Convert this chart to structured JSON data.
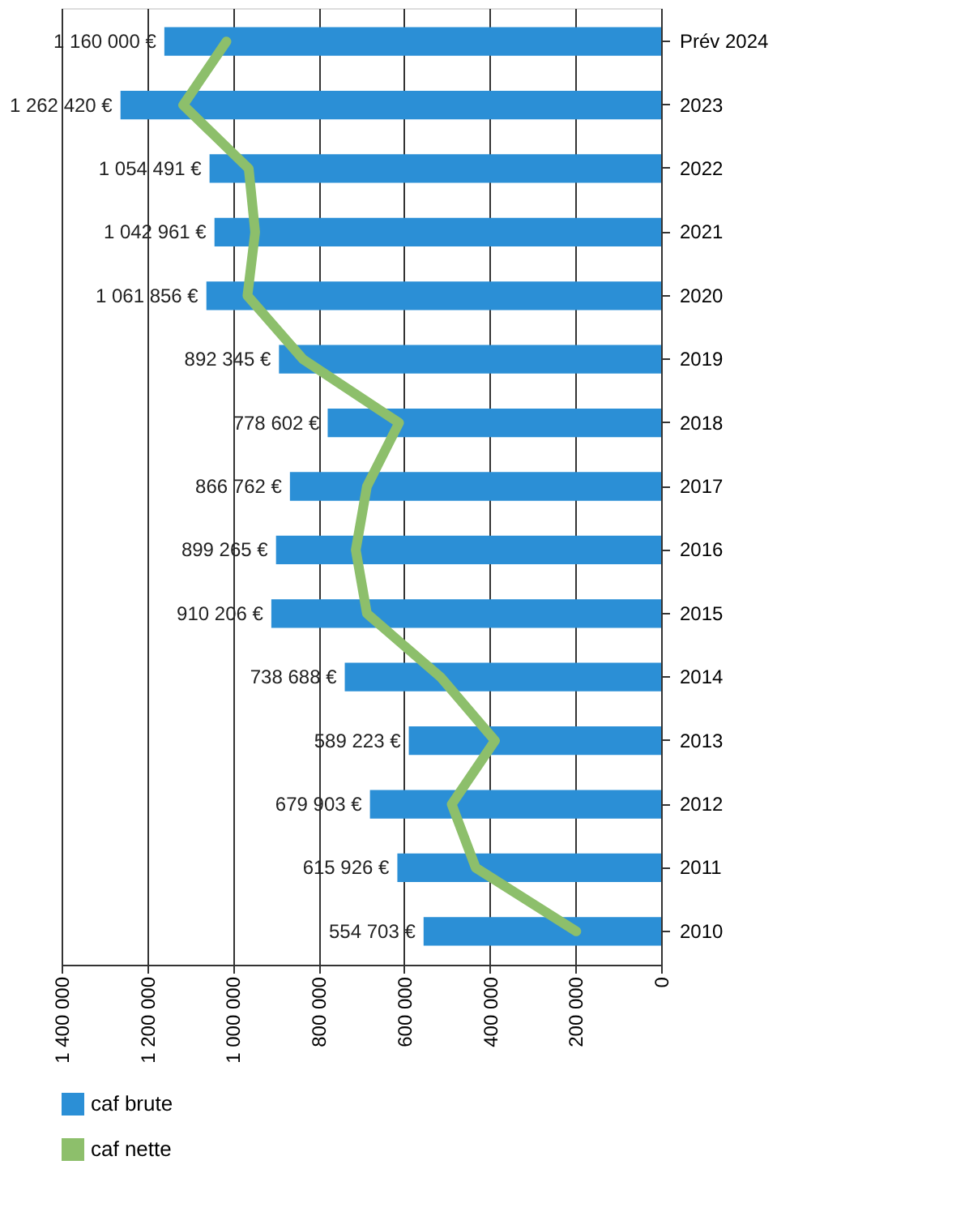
{
  "chart_data": {
    "type": "bar",
    "orientation": "horizontal",
    "categories": [
      "Prév 2024",
      "2023",
      "2022",
      "2021",
      "2020",
      "2019",
      "2018",
      "2017",
      "2016",
      "2015",
      "2014",
      "2013",
      "2012",
      "2011",
      "2010"
    ],
    "series": [
      {
        "name": "caf brute",
        "color": "#2b8fd6",
        "values": [
          1160000,
          1262420,
          1054491,
          1042961,
          1061856,
          892345,
          778602,
          866762,
          899265,
          910206,
          738688,
          589223,
          679903,
          615926,
          554703
        ],
        "value_labels": [
          "1 160 000 €",
          "1 262 420 €",
          "1 054 491 €",
          "1 042 961 €",
          "1 061 856 €",
          "892 345 €",
          "778 602 €",
          "866 762 €",
          "899 265 €",
          "910 206 €",
          "738 688 €",
          "589 223 €",
          "679 903 €",
          "615 926 €",
          "554 703 €"
        ]
      },
      {
        "name": "caf nette",
        "type": "line",
        "color": "#8dbf6b",
        "values": [
          1015000,
          1116000,
          963000,
          948000,
          966000,
          836000,
          612000,
          687000,
          713000,
          687000,
          515000,
          388000,
          489000,
          433000,
          198000
        ]
      }
    ],
    "xlim": [
      1400000,
      0
    ],
    "xticks": [
      {
        "value": 1400000,
        "label": "1 400 000"
      },
      {
        "value": 1200000,
        "label": "1 200 000"
      },
      {
        "value": 1000000,
        "label": "1 000 000"
      },
      {
        "value": 800000,
        "label": "800 000"
      },
      {
        "value": 600000,
        "label": "600 000"
      },
      {
        "value": 400000,
        "label": "400 000"
      },
      {
        "value": 200000,
        "label": "200 000"
      },
      0
    ],
    "grid": "x",
    "legend": "bottom",
    "line_style": "solid",
    "marker": "none"
  }
}
